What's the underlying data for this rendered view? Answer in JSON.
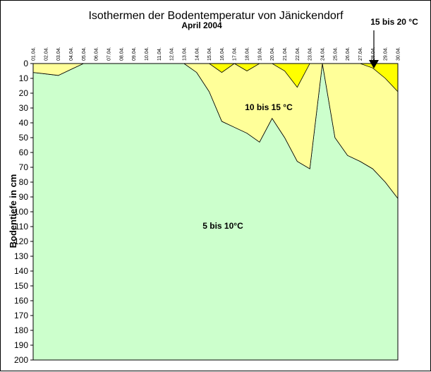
{
  "chart_data": {
    "type": "area",
    "title": "Isothermen der Bodentemperatur von Jänickendorf",
    "subtitle": "April 2004",
    "ylabel": "Bodentiefe in cm",
    "xlabel": "",
    "categories": [
      "01.04.",
      "02.04.",
      "03.04.",
      "04.04.",
      "05.04.",
      "06.04.",
      "07.04.",
      "08.04.",
      "09.04.",
      "10.04.",
      "11.04.",
      "12.04.",
      "13.04.",
      "14.04.",
      "15.04.",
      "16.04.",
      "17.04.",
      "18.04.",
      "19.04.",
      "20.04.",
      "21.04.",
      "22.04.",
      "23.04.",
      "24.04.",
      "25.04.",
      "26.04.",
      "27.04.",
      "28.04.",
      "29.04.",
      "30.04."
    ],
    "ylim": [
      200,
      0
    ],
    "yticks": [
      0,
      10,
      20,
      30,
      40,
      50,
      60,
      70,
      80,
      90,
      100,
      110,
      120,
      130,
      140,
      150,
      160,
      170,
      180,
      190,
      200
    ],
    "yticklabels": [
      "0",
      "10",
      "20",
      "30",
      "40",
      "50",
      "60",
      "70",
      "80",
      "90",
      "100",
      "110",
      "120",
      "130",
      "140",
      "150",
      "160",
      "170",
      "180",
      "190",
      "200"
    ],
    "series": [
      {
        "name": "5 bis 10°C",
        "color": "#ccffcc",
        "values": [
          6,
          7,
          8,
          4,
          0,
          0,
          0,
          0,
          0,
          0,
          0,
          0,
          0,
          6,
          19,
          39,
          43,
          47,
          53,
          37,
          50,
          66,
          71,
          0,
          50,
          62,
          66,
          71,
          80,
          91
        ]
      },
      {
        "name": "10 bis 15 °C",
        "color": "#ffff99",
        "values": [
          0,
          0,
          0,
          0,
          0,
          0,
          0,
          0,
          0,
          0,
          0,
          0,
          0,
          0,
          0,
          6,
          0,
          5,
          0,
          0,
          5,
          16,
          0,
          0,
          0,
          0,
          0,
          3,
          10,
          19
        ]
      },
      {
        "name": "15 bis 20 °C",
        "color": "#ffff00",
        "values": [
          0,
          0,
          0,
          0,
          0,
          0,
          0,
          0,
          0,
          0,
          0,
          0,
          0,
          0,
          0,
          0,
          0,
          0,
          0,
          0,
          0,
          0,
          0,
          0,
          0,
          0,
          0,
          0,
          0,
          0
        ]
      }
    ],
    "grid": false,
    "legend": "none"
  }
}
